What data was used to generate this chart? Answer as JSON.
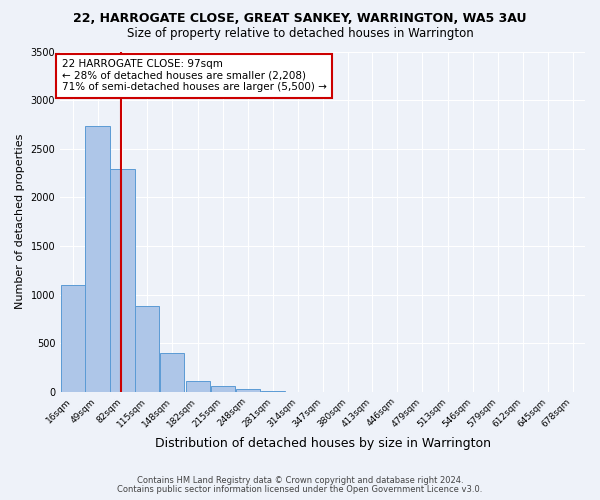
{
  "title": "22, HARROGATE CLOSE, GREAT SANKEY, WARRINGTON, WA5 3AU",
  "subtitle": "Size of property relative to detached houses in Warrington",
  "xlabel": "Distribution of detached houses by size in Warrington",
  "ylabel": "Number of detached properties",
  "footnote1": "Contains HM Land Registry data © Crown copyright and database right 2024.",
  "footnote2": "Contains public sector information licensed under the Open Government Licence v3.0.",
  "annotation_line1": "22 HARROGATE CLOSE: 97sqm",
  "annotation_line2": "← 28% of detached houses are smaller (2,208)",
  "annotation_line3": "71% of semi-detached houses are larger (5,500) →",
  "property_size": 97,
  "bins": [
    16,
    49,
    82,
    115,
    148,
    182,
    215,
    248,
    281,
    314,
    347,
    380,
    413,
    446,
    479,
    513,
    546,
    579,
    612,
    645,
    678
  ],
  "counts": [
    1100,
    2730,
    2290,
    880,
    400,
    110,
    60,
    30,
    10,
    0,
    0,
    0,
    0,
    0,
    0,
    0,
    0,
    0,
    0,
    0
  ],
  "bar_color": "#aec6e8",
  "bar_edge_color": "#5b9bd5",
  "vline_color": "#cc0000",
  "vline_x": 97,
  "annotation_box_color": "#cc0000",
  "background_color": "#eef2f9",
  "grid_color": "#ffffff",
  "ylim": [
    0,
    3500
  ],
  "yticks": [
    0,
    500,
    1000,
    1500,
    2000,
    2500,
    3000,
    3500
  ],
  "title_fontsize": 9,
  "subtitle_fontsize": 8.5,
  "ylabel_fontsize": 8,
  "xlabel_fontsize": 9,
  "tick_fontsize": 6.5,
  "annot_fontsize": 7.5,
  "footnote_fontsize": 6
}
